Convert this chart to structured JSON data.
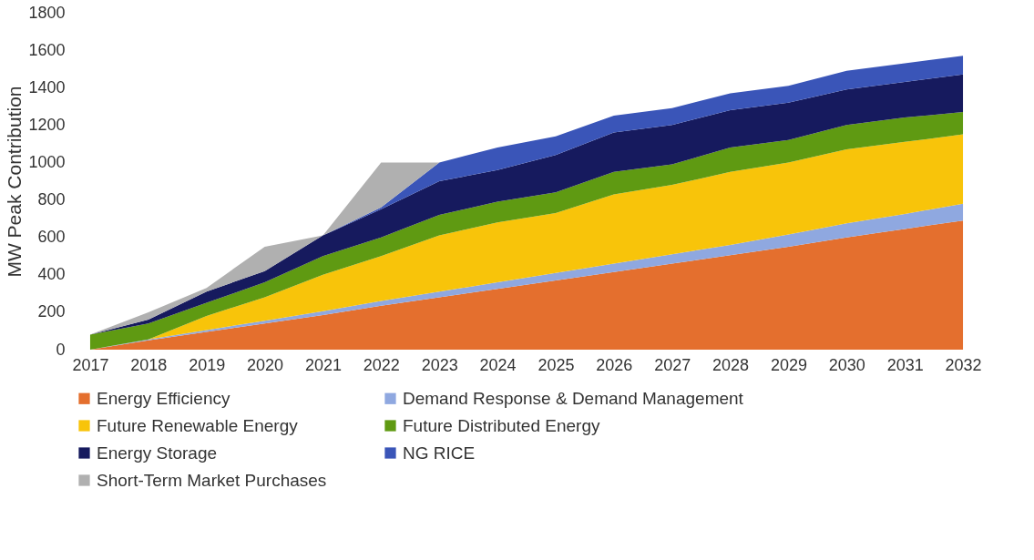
{
  "chart_data": {
    "type": "area",
    "stacked": true,
    "ylabel": "MW Peak Contribution",
    "categories": [
      "2017",
      "2018",
      "2019",
      "2020",
      "2021",
      "2022",
      "2023",
      "2024",
      "2025",
      "2026",
      "2027",
      "2028",
      "2029",
      "2030",
      "2031",
      "2032"
    ],
    "series": [
      {
        "name": "Energy Efficiency",
        "color": "#e46f2e",
        "values": [
          0,
          50,
          95,
          140,
          185,
          235,
          280,
          325,
          370,
          415,
          460,
          505,
          550,
          600,
          645,
          690
        ]
      },
      {
        "name": "Demand Response & Demand Management",
        "color": "#8fa8e0",
        "values": [
          0,
          5,
          10,
          15,
          20,
          25,
          30,
          35,
          40,
          45,
          50,
          55,
          65,
          75,
          80,
          90
        ]
      },
      {
        "name": "Future Renewable Energy",
        "color": "#f8c40a",
        "values": [
          0,
          0,
          75,
          125,
          195,
          240,
          300,
          320,
          320,
          370,
          370,
          390,
          385,
          395,
          385,
          370
        ]
      },
      {
        "name": "Future Distributed Energy",
        "color": "#5f9a12",
        "values": [
          80,
          85,
          70,
          80,
          100,
          100,
          110,
          110,
          110,
          120,
          110,
          130,
          120,
          130,
          130,
          120
        ]
      },
      {
        "name": "Energy Storage",
        "color": "#161a5e",
        "values": [
          0,
          20,
          60,
          60,
          110,
          150,
          180,
          170,
          200,
          210,
          210,
          200,
          200,
          190,
          190,
          200
        ]
      },
      {
        "name": "NG RICE",
        "color": "#3a55b8",
        "values": [
          0,
          0,
          0,
          0,
          0,
          10,
          100,
          120,
          100,
          90,
          90,
          90,
          90,
          100,
          100,
          100
        ]
      },
      {
        "name": "Short-Term Market Purchases",
        "color": "#b0b0b0",
        "values": [
          0,
          40,
          20,
          130,
          0,
          240,
          0,
          null,
          null,
          null,
          null,
          null,
          null,
          null,
          null,
          null
        ]
      }
    ],
    "ylim": [
      0,
      1800
    ],
    "yticks": [
      0,
      200,
      400,
      600,
      800,
      1000,
      1200,
      1400,
      1600,
      1800
    ],
    "grid": false,
    "legend": "bottom"
  }
}
